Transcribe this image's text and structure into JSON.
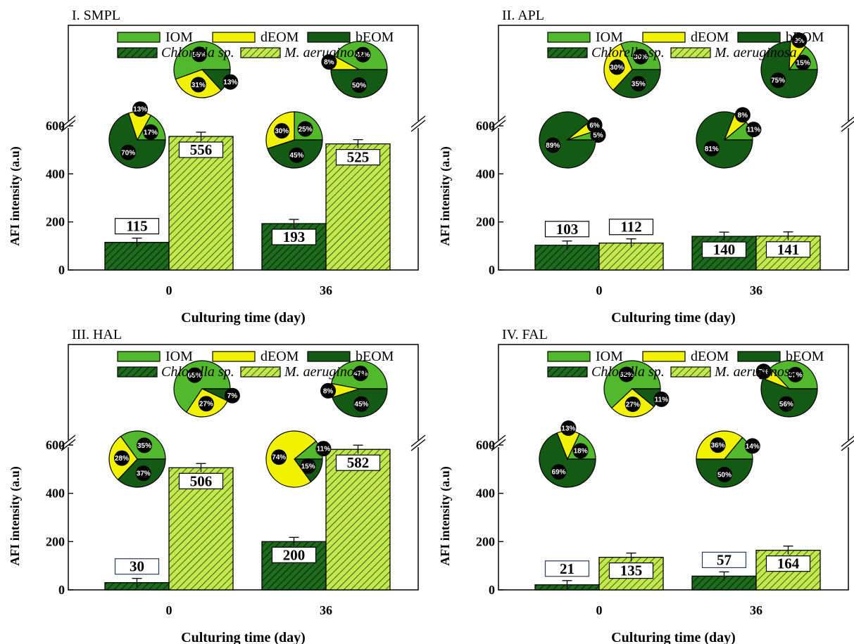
{
  "figure": {
    "colors": {
      "IOM": "#52b82c",
      "dEOM": "#f2f200",
      "bEOM": "#145a14",
      "chlorella_bar": "#1e6b1e",
      "maeruginosa_bar": "#c2e84e",
      "label_circle": "#000000"
    }
  },
  "chart_data": [
    {
      "type": "bar",
      "panel_title": "I. SMPL",
      "categories": [
        "0",
        "36"
      ],
      "xlabel": "Culturing time (day)",
      "ylabel": "AFI intensity (a.u)",
      "y_ticks": [
        "0",
        "200",
        "400",
        "600"
      ],
      "ylim": [
        0,
        600
      ],
      "axis_break": true,
      "legend": {
        "fraction_entries": [
          "IOM",
          "dEOM",
          "bEOM"
        ],
        "series_entries": [
          "Chlorella sp.",
          "M. aeruginosa"
        ],
        "position": "top-center"
      },
      "series": [
        {
          "name": "Chlorella sp.",
          "values": [
            115,
            193
          ]
        },
        {
          "name": "M. aeruginosa",
          "values": [
            556,
            525
          ]
        }
      ],
      "value_labels": [
        [
          "115",
          "193"
        ],
        [
          "556",
          "525"
        ]
      ],
      "pies": [
        [
          {
            "name": "Chlorella sp.",
            "fractions": [
              {
                "component": "IOM",
                "percent": 17,
                "label": "17%"
              },
              {
                "component": "dEOM",
                "percent": 13,
                "label": "13%"
              },
              {
                "component": "bEOM",
                "percent": 70,
                "label": "70%"
              }
            ]
          },
          {
            "name": "M. aeruginosa",
            "fractions": [
              {
                "component": "IOM",
                "percent": 55,
                "label": "55%"
              },
              {
                "component": "dEOM",
                "percent": 31,
                "label": "31%"
              },
              {
                "component": "bEOM",
                "percent": 13,
                "label": "13%"
              }
            ]
          }
        ],
        [
          {
            "name": "Chlorella sp.",
            "fractions": [
              {
                "component": "IOM",
                "percent": 25,
                "label": "25%"
              },
              {
                "component": "dEOM",
                "percent": 30,
                "label": "30%"
              },
              {
                "component": "bEOM",
                "percent": 45,
                "label": "45%"
              }
            ]
          },
          {
            "name": "M. aeruginosa",
            "fractions": [
              {
                "component": "IOM",
                "percent": 42,
                "label": "42%"
              },
              {
                "component": "dEOM",
                "percent": 8,
                "label": "8%"
              },
              {
                "component": "bEOM",
                "percent": 50,
                "label": "50%"
              }
            ]
          }
        ]
      ]
    },
    {
      "type": "bar",
      "panel_title": "II. APL",
      "categories": [
        "0",
        "36"
      ],
      "xlabel": "Culturing time (day)",
      "ylabel": "AFI intensity (a.u)",
      "y_ticks": [
        "0",
        "200",
        "400",
        "600"
      ],
      "ylim": [
        0,
        600
      ],
      "axis_break": true,
      "legend": {
        "fraction_entries": [
          "IOM",
          "dEOM",
          "bEOM"
        ],
        "series_entries": [
          "Chlorella sp.",
          "M. aeruginosa"
        ],
        "position": "top-center"
      },
      "series": [
        {
          "name": "Chlorella sp.",
          "values": [
            103,
            140
          ]
        },
        {
          "name": "M. aeruginosa",
          "values": [
            112,
            141
          ]
        }
      ],
      "value_labels": [
        [
          "103",
          "140"
        ],
        [
          "112",
          "141"
        ]
      ],
      "pies": [
        [
          {
            "name": "Chlorella sp.",
            "fractions": [
              {
                "component": "IOM",
                "percent": 5,
                "label": "5%"
              },
              {
                "component": "dEOM",
                "percent": 6,
                "label": "6%"
              },
              {
                "component": "bEOM",
                "percent": 89,
                "label": "89%"
              }
            ]
          },
          {
            "name": "M. aeruginosa",
            "fractions": [
              {
                "component": "IOM",
                "percent": 30,
                "label": "30%"
              },
              {
                "component": "dEOM",
                "percent": 30,
                "label": "30%"
              },
              {
                "component": "bEOM",
                "percent": 35,
                "label": "35%"
              }
            ]
          }
        ],
        [
          {
            "name": "Chlorella sp.",
            "fractions": [
              {
                "component": "IOM",
                "percent": 11,
                "label": "11%"
              },
              {
                "component": "dEOM",
                "percent": 8,
                "label": "8%"
              },
              {
                "component": "bEOM",
                "percent": 81,
                "label": "81%"
              }
            ]
          },
          {
            "name": "M. aeruginosa",
            "fractions": [
              {
                "component": "IOM",
                "percent": 15,
                "label": "15%"
              },
              {
                "component": "dEOM",
                "percent": 9,
                "label": "9%"
              },
              {
                "component": "bEOM",
                "percent": 75,
                "label": "75%"
              }
            ]
          }
        ]
      ]
    },
    {
      "type": "bar",
      "panel_title": "III. HAL",
      "categories": [
        "0",
        "36"
      ],
      "xlabel": "Culturing time (day)",
      "ylabel": "AFI intensity (a.u)",
      "y_ticks": [
        "0",
        "200",
        "400",
        "600"
      ],
      "ylim": [
        0,
        600
      ],
      "axis_break": true,
      "legend": {
        "fraction_entries": [
          "IOM",
          "dEOM",
          "bEOM"
        ],
        "series_entries": [
          "Chlorella sp.",
          "M. aeruginosa"
        ],
        "position": "top-center"
      },
      "series": [
        {
          "name": "Chlorella sp.",
          "values": [
            30,
            200
          ]
        },
        {
          "name": "M. aeruginosa",
          "values": [
            506,
            582
          ]
        }
      ],
      "value_labels": [
        [
          "30",
          "200"
        ],
        [
          "506",
          "582"
        ]
      ],
      "pies": [
        [
          {
            "name": "Chlorella sp.",
            "fractions": [
              {
                "component": "IOM",
                "percent": 35,
                "label": "35%"
              },
              {
                "component": "dEOM",
                "percent": 28,
                "label": "28%"
              },
              {
                "component": "bEOM",
                "percent": 37,
                "label": "37%"
              }
            ]
          },
          {
            "name": "M. aeruginosa",
            "fractions": [
              {
                "component": "IOM",
                "percent": 65,
                "label": "65%"
              },
              {
                "component": "dEOM",
                "percent": 27,
                "label": "27%"
              },
              {
                "component": "bEOM",
                "percent": 7,
                "label": "7%"
              }
            ]
          }
        ],
        [
          {
            "name": "Chlorella sp.",
            "fractions": [
              {
                "component": "IOM",
                "percent": 11,
                "label": "11%"
              },
              {
                "component": "dEOM",
                "percent": 74,
                "label": "74%"
              },
              {
                "component": "bEOM",
                "percent": 15,
                "label": "15%"
              }
            ]
          },
          {
            "name": "M. aeruginosa",
            "fractions": [
              {
                "component": "IOM",
                "percent": 47,
                "label": "47%"
              },
              {
                "component": "dEOM",
                "percent": 8,
                "label": "8%"
              },
              {
                "component": "bEOM",
                "percent": 45,
                "label": "45%"
              }
            ]
          }
        ]
      ]
    },
    {
      "type": "bar",
      "panel_title": "IV. FAL",
      "categories": [
        "0",
        "36"
      ],
      "xlabel": "Culturing time (day)",
      "ylabel": "AFI intensity (a.u)",
      "y_ticks": [
        "0",
        "200",
        "400",
        "600"
      ],
      "ylim": [
        0,
        600
      ],
      "axis_break": true,
      "legend": {
        "fraction_entries": [
          "IOM",
          "dEOM",
          "bEOM"
        ],
        "series_entries": [
          "Chlorella sp.",
          "M. aeruginosa"
        ],
        "position": "top-center"
      },
      "series": [
        {
          "name": "Chlorella sp.",
          "values": [
            21,
            57
          ]
        },
        {
          "name": "M. aeruginosa",
          "values": [
            135,
            164
          ]
        }
      ],
      "value_labels": [
        [
          "21",
          "57"
        ],
        [
          "135",
          "164"
        ]
      ],
      "pies": [
        [
          {
            "name": "Chlorella sp.",
            "fractions": [
              {
                "component": "IOM",
                "percent": 18,
                "label": "18%"
              },
              {
                "component": "dEOM",
                "percent": 13,
                "label": "13%"
              },
              {
                "component": "bEOM",
                "percent": 69,
                "label": "69%"
              }
            ]
          },
          {
            "name": "M. aeruginosa",
            "fractions": [
              {
                "component": "IOM",
                "percent": 62,
                "label": "62%"
              },
              {
                "component": "dEOM",
                "percent": 27,
                "label": "27%"
              },
              {
                "component": "bEOM",
                "percent": 11,
                "label": "11%"
              }
            ]
          }
        ],
        [
          {
            "name": "Chlorella sp.",
            "fractions": [
              {
                "component": "IOM",
                "percent": 14,
                "label": "14%"
              },
              {
                "component": "dEOM",
                "percent": 36,
                "label": "36%"
              },
              {
                "component": "bEOM",
                "percent": 50,
                "label": "50%"
              }
            ]
          },
          {
            "name": "M. aeruginosa",
            "fractions": [
              {
                "component": "IOM",
                "percent": 37,
                "label": "37%"
              },
              {
                "component": "dEOM",
                "percent": 7,
                "label": "7%"
              },
              {
                "component": "bEOM",
                "percent": 56,
                "label": "56%"
              }
            ]
          }
        ]
      ]
    }
  ]
}
